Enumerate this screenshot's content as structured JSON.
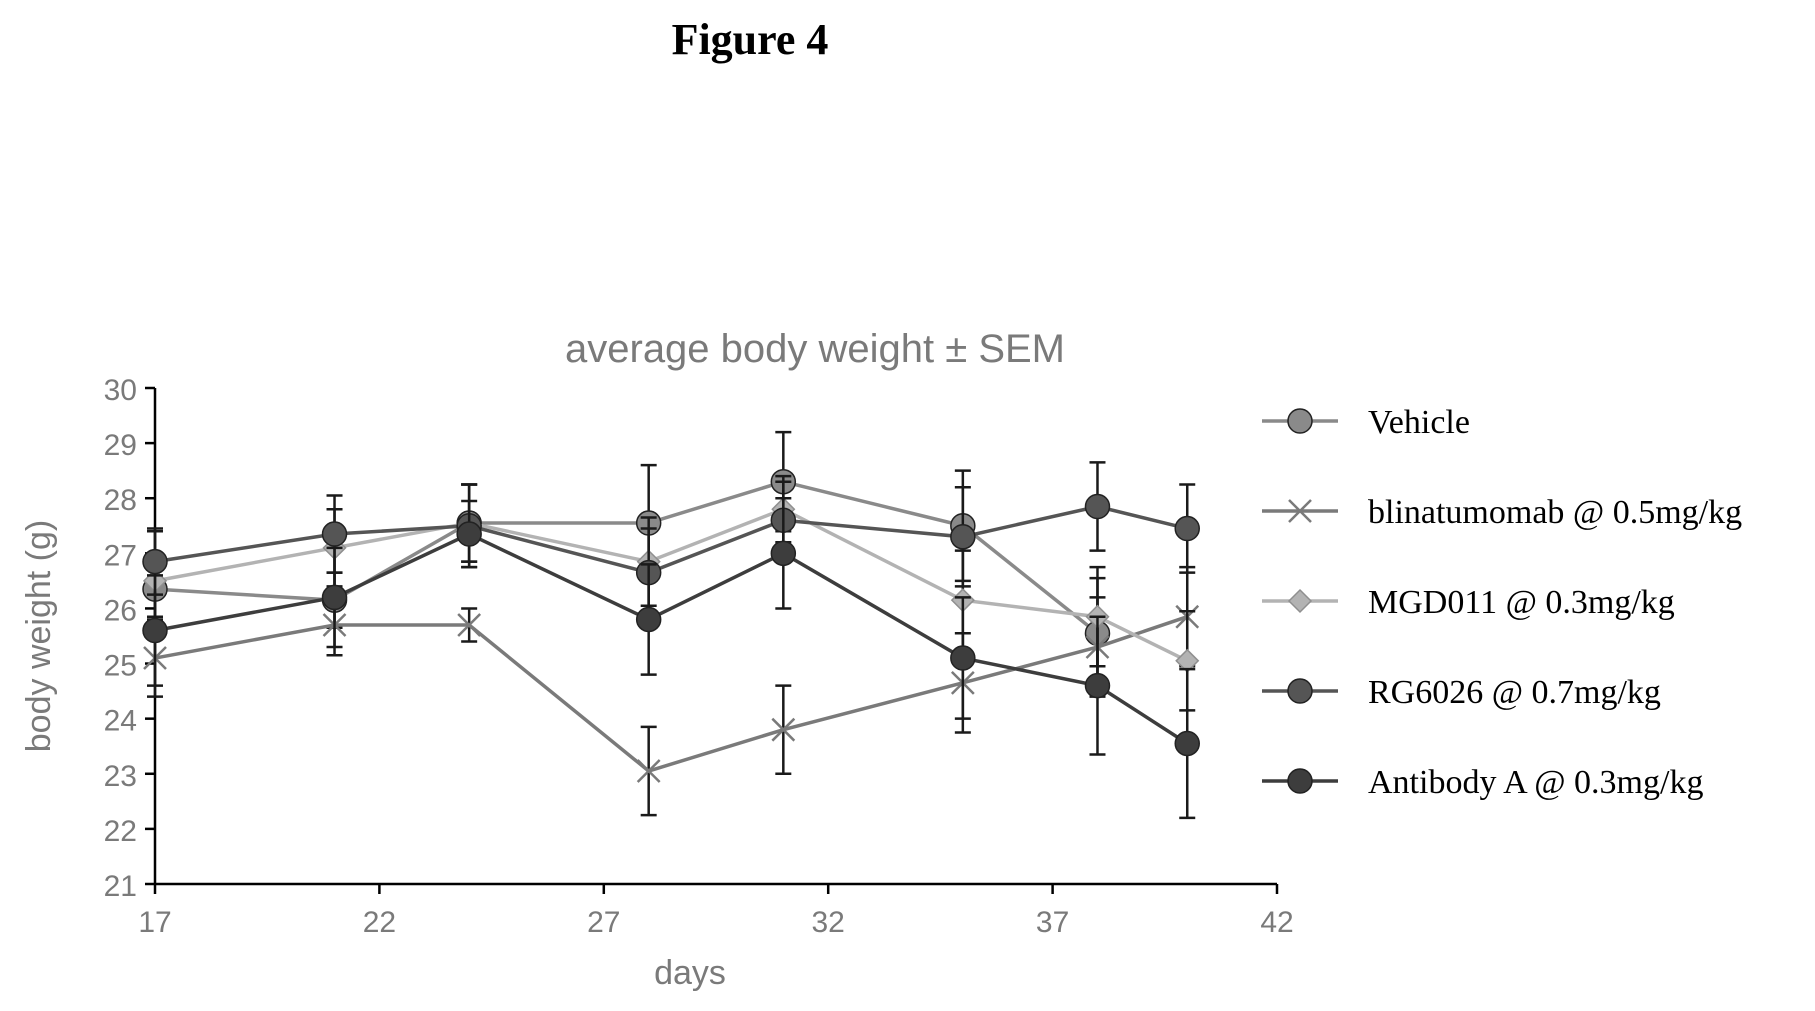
{
  "figure_label": "Figure 4",
  "chart_data": {
    "type": "line",
    "title": "average body weight ± SEM",
    "xlabel": "days",
    "ylabel": "body weight (g)",
    "xlim": [
      17,
      42
    ],
    "ylim": [
      21,
      30
    ],
    "x_ticks": [
      "17",
      "22",
      "27",
      "32",
      "37",
      "42"
    ],
    "y_ticks": [
      "21",
      "22",
      "23",
      "24",
      "25",
      "26",
      "27",
      "28",
      "29",
      "30"
    ],
    "grid": false,
    "legend_position": "right",
    "x": [
      17,
      21,
      24,
      28,
      31,
      35,
      38,
      40
    ],
    "series": [
      {
        "name": "Vehicle",
        "color": "#8a8a8a",
        "marker": "circle",
        "values": [
          26.35,
          26.15,
          27.55,
          27.55,
          28.3,
          27.5,
          25.55,
          null
        ],
        "errors": [
          0.5,
          0.5,
          0.7,
          1.05,
          0.9,
          1.0,
          1.0,
          null
        ]
      },
      {
        "name": "blinatumomab @ 0.5mg/kg",
        "color": "#7a7a7a",
        "marker": "x",
        "values": [
          25.1,
          25.7,
          25.7,
          23.05,
          23.8,
          24.65,
          25.3,
          25.85
        ],
        "errors": [
          0.7,
          0.55,
          0.3,
          0.8,
          0.8,
          0.9,
          0.9,
          0.9
        ]
      },
      {
        "name": "MGD011 @ 0.3mg/kg",
        "color": "#b3b3b3",
        "marker": "diamond",
        "values": [
          26.5,
          27.1,
          27.55,
          26.85,
          27.8,
          26.15,
          25.85,
          25.05
        ],
        "errors": [
          0.9,
          0.7,
          0.7,
          0.8,
          0.6,
          0.9,
          0.9,
          0.9
        ]
      },
      {
        "name": "RG6026 @ 0.7mg/kg",
        "color": "#555555",
        "marker": "circle",
        "values": [
          26.85,
          27.35,
          27.5,
          26.65,
          27.6,
          27.3,
          27.85,
          27.45
        ],
        "errors": [
          0.6,
          0.7,
          0.75,
          0.8,
          0.7,
          0.9,
          0.8,
          0.8
        ]
      },
      {
        "name": "Antibody A @ 0.3mg/kg",
        "color": "#3d3d3d",
        "marker": "circle",
        "values": [
          25.6,
          26.2,
          27.35,
          25.8,
          27.0,
          25.1,
          24.6,
          23.55
        ],
        "errors": [
          1.0,
          0.9,
          0.6,
          1.0,
          1.0,
          1.1,
          1.25,
          1.35
        ]
      }
    ]
  }
}
